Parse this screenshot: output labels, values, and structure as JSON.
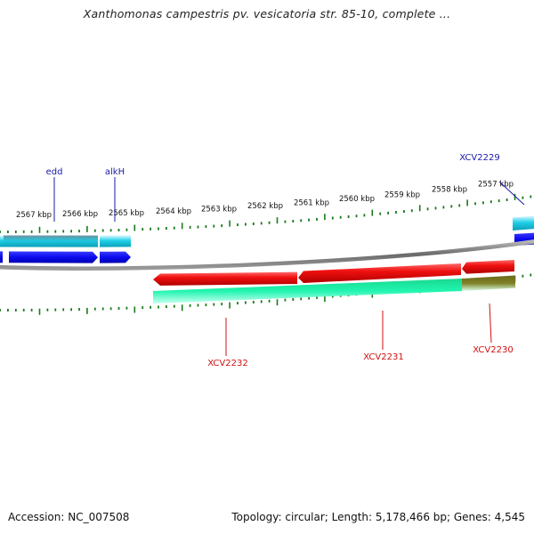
{
  "title": "Xanthomonas campestris pv. vesicatoria str. 85-10, complete ...",
  "accession": "Accession: NC_007508",
  "summary": "Topology: circular; Length: 5,178,466 bp; Genes: 4,545",
  "colors": {
    "backbone": "#808080",
    "tick": "#1a7a1a",
    "forward_label": "#1a1aa8",
    "reverse_label": "#d01010",
    "gene_red": "#ee1111",
    "gene_blue": "#1010ee",
    "gene_cyan": "#10c8e0",
    "gene_green": "#10f0a8",
    "gene_olive": "#808020",
    "gene_grey": "#5a8aa0"
  },
  "kbp_labels": [
    "2567 kbp",
    "2566 kbp",
    "2565 kbp",
    "2564 kbp",
    "2563 kbp",
    "2562 kbp",
    "2561 kbp",
    "2560 kbp",
    "2559 kbp",
    "2558 kbp",
    "2557 kbp"
  ],
  "forward_genes": [
    "edd",
    "alkH",
    "XCV2229"
  ],
  "reverse_genes": [
    "XCV2232",
    "XCV2231",
    "XCV2230"
  ]
}
